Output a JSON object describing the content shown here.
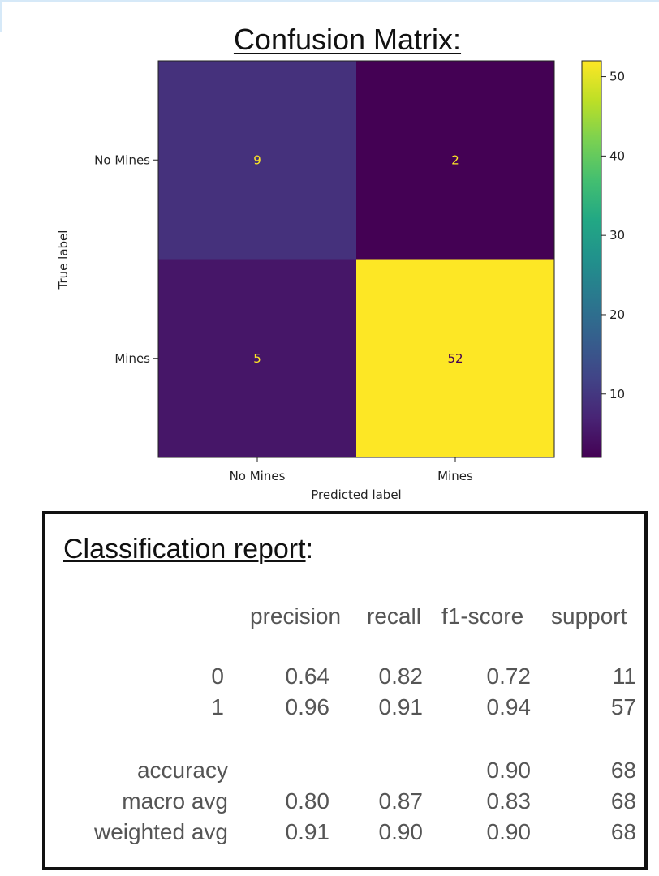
{
  "confusion_title": "Confusion Matrix:",
  "chart_data": {
    "type": "heatmap",
    "title": "Confusion Matrix:",
    "xlabel": "Predicted label",
    "ylabel": "True label",
    "x_categories": [
      "No Mines",
      "Mines"
    ],
    "y_categories": [
      "No Mines",
      "Mines"
    ],
    "values": [
      [
        9,
        2
      ],
      [
        5,
        52
      ]
    ],
    "colormap": "viridis",
    "colorbar": {
      "min": 2,
      "max": 52,
      "ticks": [
        10,
        20,
        30,
        40,
        50
      ]
    },
    "colors": {
      "dark": "#440154",
      "bright": "#fde725"
    }
  },
  "report": {
    "title": "Classification report",
    "title_suffix": ":",
    "headers": [
      "precision",
      "recall",
      "f1-score",
      "support"
    ],
    "rows": [
      {
        "label": "0",
        "precision": "0.64",
        "recall": "0.82",
        "f1": "0.72",
        "support": "11"
      },
      {
        "label": "1",
        "precision": "0.96",
        "recall": "0.91",
        "f1": "0.94",
        "support": "57"
      }
    ],
    "accuracy": {
      "label": "accuracy",
      "f1": "0.90",
      "support": "68"
    },
    "macro": {
      "label": "macro avg",
      "precision": "0.80",
      "recall": "0.87",
      "f1": "0.83",
      "support": "68"
    },
    "weighted": {
      "label": "weighted avg",
      "precision": "0.91",
      "recall": "0.90",
      "f1": "0.90",
      "support": "68"
    }
  }
}
